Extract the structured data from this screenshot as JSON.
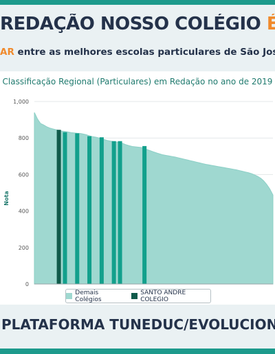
{
  "header": {
    "headline_main": "REDAÇÃO NOSSO COLÉGIO ",
    "headline_accent": "É LID",
    "subline_accent": "AR",
    "subline_rest": " entre as melhores escolas particulares de São José do R"
  },
  "footer": {
    "text": "PLATAFORMA TUNEDUC/EVOLUCIONAL"
  },
  "colors": {
    "area": "#9fd8d0",
    "area_stroke": "#8ccfc6",
    "bar_others": "#12a08c",
    "bar_highlight": "#0f5a4a",
    "accent": "#f08a2c",
    "brand_teal": "#1d9a8c"
  },
  "chart_data": {
    "type": "area",
    "title": "Classificação Regional (Particulares) em Redação no ano de 2019",
    "ylabel": "Nota",
    "xlabel": "",
    "ylim": [
      0,
      1000
    ],
    "y_ticks": [
      "0",
      "200",
      "400",
      "600",
      "800",
      "1,000"
    ],
    "y_tick_values": [
      0,
      200,
      400,
      600,
      800,
      1000
    ],
    "grid": true,
    "legend_position": "bottom",
    "area_series": {
      "name": "Demais Colégios",
      "values": [
        940,
        905,
        880,
        872,
        862,
        855,
        850,
        846,
        842,
        838,
        836,
        833,
        830,
        828,
        826,
        825,
        822,
        818,
        812,
        808,
        805,
        801,
        796,
        791,
        786,
        783,
        780,
        778,
        776,
        770,
        763,
        758,
        754,
        752,
        750,
        748,
        742,
        736,
        730,
        724,
        718,
        713,
        708,
        705,
        702,
        699,
        696,
        692,
        688,
        684,
        680,
        676,
        672,
        668,
        664,
        660,
        656,
        653,
        650,
        647,
        644,
        641,
        638,
        635,
        632,
        629,
        626,
        622,
        618,
        614,
        610,
        605,
        598,
        590,
        580,
        565,
        545,
        520,
        488
      ]
    },
    "bar_series": [
      {
        "name": "Demais Colégios",
        "index": 10,
        "value": 832
      },
      {
        "name": "Demais Colégios",
        "index": 14,
        "value": 826
      },
      {
        "name": "Demais Colégios",
        "index": 18,
        "value": 810
      },
      {
        "name": "Demais Colégios",
        "index": 22,
        "value": 804
      },
      {
        "name": "Demais Colégios",
        "index": 26,
        "value": 783
      },
      {
        "name": "Demais Colégios",
        "index": 28,
        "value": 783
      },
      {
        "name": "Demais Colégios",
        "index": 36,
        "value": 756
      },
      {
        "name": "SANTO ANDRE COLEGIO",
        "index": 8,
        "value": 845,
        "highlight": true
      }
    ],
    "legend": [
      "Demais Colégios",
      "SANTO ANDRE COLEGIO"
    ]
  }
}
